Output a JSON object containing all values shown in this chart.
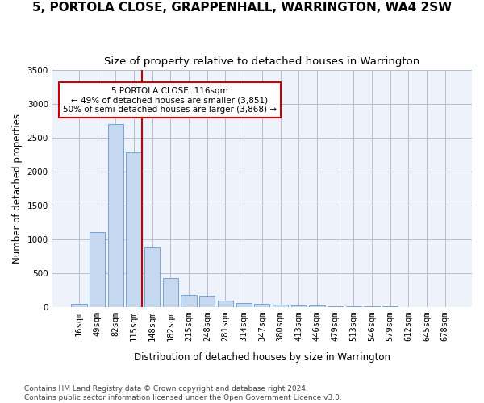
{
  "title": "5, PORTOLA CLOSE, GRAPPENHALL, WARRINGTON, WA4 2SW",
  "subtitle": "Size of property relative to detached houses in Warrington",
  "xlabel": "Distribution of detached houses by size in Warrington",
  "ylabel": "Number of detached properties",
  "categories": [
    "16sqm",
    "49sqm",
    "82sqm",
    "115sqm",
    "148sqm",
    "182sqm",
    "215sqm",
    "248sqm",
    "281sqm",
    "314sqm",
    "347sqm",
    "380sqm",
    "413sqm",
    "446sqm",
    "479sqm",
    "513sqm",
    "546sqm",
    "579sqm",
    "612sqm",
    "645sqm",
    "678sqm"
  ],
  "values": [
    50,
    1100,
    2700,
    2280,
    880,
    420,
    170,
    165,
    90,
    60,
    45,
    30,
    22,
    18,
    8,
    5,
    3,
    3,
    2,
    2,
    2
  ],
  "bar_color": "#c5d8f0",
  "bar_edge_color": "#6699cc",
  "vline_index": 3,
  "vline_color": "#cc0000",
  "annotation_line1": "5 PORTOLA CLOSE: 116sqm",
  "annotation_line2": "← 49% of detached houses are smaller (3,851)",
  "annotation_line3": "50% of semi-detached houses are larger (3,868) →",
  "annotation_box_facecolor": "#ffffff",
  "annotation_box_edgecolor": "#cc0000",
  "ylim": [
    0,
    3500
  ],
  "yticks": [
    0,
    500,
    1000,
    1500,
    2000,
    2500,
    3000,
    3500
  ],
  "plot_bg_color": "#eef2fb",
  "grid_color": "#bbbbcc",
  "title_fontsize": 11,
  "subtitle_fontsize": 9.5,
  "axis_label_fontsize": 8.5,
  "tick_fontsize": 7.5,
  "footer_text": "Contains HM Land Registry data © Crown copyright and database right 2024.\nContains public sector information licensed under the Open Government Licence v3.0.",
  "footer_fontsize": 6.5
}
